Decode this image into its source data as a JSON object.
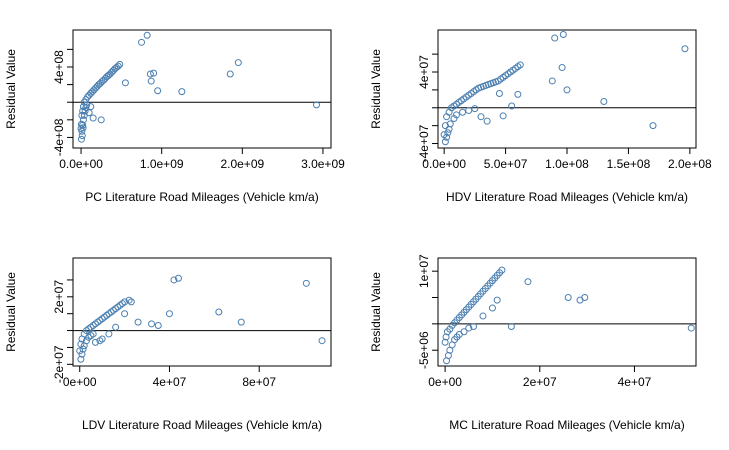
{
  "figure": {
    "accent_color": "#4A7FB0"
  },
  "chart_data": [
    {
      "type": "scatter",
      "title": "",
      "xlabel": "PC Literature Road Mileages (Vehicle km/a)",
      "ylabel": "Residual Value",
      "xlim": [
        -100000000,
        3100000000
      ],
      "ylim": [
        -520000000,
        820000000
      ],
      "xticks": [
        {
          "value": 0,
          "label": "0.0e+00"
        },
        {
          "value": 1000000000,
          "label": "1.0e+09"
        },
        {
          "value": 2000000000,
          "label": "2.0e+09"
        },
        {
          "value": 3000000000,
          "label": "3.0e+09"
        }
      ],
      "yticks": [
        {
          "value": 400000000,
          "label": "4e+08"
        },
        {
          "value": -400000000,
          "label": "-4e+08"
        }
      ],
      "yminor": [
        -200000000,
        0,
        200000000,
        600000000
      ],
      "hline": 0,
      "series": [
        {
          "color": "#4A7FB0",
          "x": [
            0,
            5000000,
            10000000,
            20000000,
            30000000,
            40000000,
            60000000,
            80000000,
            100000000,
            120000000,
            140000000,
            160000000,
            180000000,
            200000000,
            220000000,
            240000000,
            260000000,
            280000000,
            300000000,
            320000000,
            340000000,
            360000000,
            380000000,
            400000000,
            420000000,
            440000000,
            460000000,
            480000000,
            10000000,
            20000000,
            30000000,
            40000000,
            5000000,
            15000000,
            25000000,
            60000000,
            50000000,
            70000000,
            120000000,
            100000000,
            150000000,
            250000000,
            550000000,
            750000000,
            820000000,
            860000000,
            900000000,
            870000000,
            950000000,
            1250000000,
            1850000000,
            1950000000,
            2920000000
          ],
          "y": [
            -300000000,
            -250000000,
            -150000000,
            -100000000,
            -50000000,
            0,
            30000000,
            60000000,
            80000000,
            100000000,
            120000000,
            140000000,
            160000000,
            180000000,
            200000000,
            215000000,
            235000000,
            250000000,
            270000000,
            290000000,
            305000000,
            320000000,
            340000000,
            360000000,
            380000000,
            395000000,
            410000000,
            430000000,
            -330000000,
            -260000000,
            -200000000,
            -150000000,
            -420000000,
            -380000000,
            -290000000,
            -60000000,
            -100000000,
            -30000000,
            -50000000,
            -120000000,
            -180000000,
            -200000000,
            220000000,
            680000000,
            760000000,
            320000000,
            330000000,
            240000000,
            130000000,
            120000000,
            320000000,
            450000000,
            -30000000
          ]
        }
      ]
    },
    {
      "type": "scatter",
      "title": "",
      "xlabel": "HDV Literature Road Mileages (Vehicle km/a)",
      "ylabel": "Residual Value",
      "xlim": [
        -5000000,
        205000000
      ],
      "ylim": [
        -45000000,
        87000000
      ],
      "xticks": [
        {
          "value": 0,
          "label": "0.0e+00"
        },
        {
          "value": 50000000,
          "label": "5.0e+07"
        },
        {
          "value": 100000000,
          "label": "1.0e+08"
        },
        {
          "value": 150000000,
          "label": "1.5e+08"
        },
        {
          "value": 200000000,
          "label": "2.0e+08"
        }
      ],
      "yticks": [
        {
          "value": 40000000,
          "label": "4e+07"
        },
        {
          "value": -40000000,
          "label": "-4e+07"
        }
      ],
      "yminor": [
        -20000000,
        0,
        20000000,
        60000000
      ],
      "hline": 0,
      "series": [
        {
          "color": "#4A7FB0",
          "x": [
            0,
            1000000,
            2000000,
            4000000,
            6000000,
            8000000,
            10000000,
            12000000,
            14000000,
            16000000,
            18000000,
            20000000,
            22000000,
            24000000,
            26000000,
            28000000,
            30000000,
            32000000,
            34000000,
            36000000,
            38000000,
            40000000,
            42000000,
            44000000,
            46000000,
            48000000,
            50000000,
            52000000,
            54000000,
            56000000,
            58000000,
            60000000,
            62000000,
            1000000,
            2000000,
            3000000,
            4000000,
            5000000,
            8000000,
            10000000,
            15000000,
            20000000,
            25000000,
            30000000,
            35000000,
            45000000,
            48000000,
            55000000,
            60000000,
            88000000,
            90000000,
            96000000,
            97000000,
            100000000,
            130000000,
            170000000,
            196000000
          ],
          "y": [
            -30000000,
            -20000000,
            -10000000,
            -5000000,
            0,
            2000000,
            4000000,
            6000000,
            8000000,
            10000000,
            12000000,
            14000000,
            16000000,
            18000000,
            20000000,
            22000000,
            23000000,
            24000000,
            25000000,
            26000000,
            27000000,
            28000000,
            29000000,
            30000000,
            32000000,
            34000000,
            36000000,
            38000000,
            40000000,
            42000000,
            44000000,
            46000000,
            48000000,
            -38000000,
            -33000000,
            -28000000,
            -24000000,
            -18000000,
            -12000000,
            -8000000,
            -5000000,
            -3000000,
            -1000000,
            -10000000,
            -15000000,
            16000000,
            -9000000,
            2000000,
            15000000,
            30000000,
            78000000,
            45000000,
            82000000,
            20000000,
            7000000,
            -20000000,
            66000000
          ]
        }
      ]
    },
    {
      "type": "scatter",
      "title": "",
      "xlabel": "LDV Literature Road Mileages (Vehicle km/a)",
      "ylabel": "Residual Value",
      "xlim": [
        -3000000,
        112000000
      ],
      "ylim": [
        -21000000,
        43000000
      ],
      "xticks": [
        {
          "value": 0,
          "label": "0e+00"
        },
        {
          "value": 40000000,
          "label": "4e+07"
        },
        {
          "value": 80000000,
          "label": "8e+07"
        }
      ],
      "yticks": [
        {
          "value": 20000000,
          "label": "2e+07"
        },
        {
          "value": -20000000,
          "label": "-2e+07"
        }
      ],
      "yminor": [
        -10000000,
        0,
        10000000,
        30000000
      ],
      "hline": 0,
      "series": [
        {
          "color": "#4A7FB0",
          "x": [
            0,
            500000,
            1000000,
            2000000,
            3000000,
            4000000,
            5000000,
            6000000,
            7000000,
            8000000,
            9000000,
            10000000,
            11000000,
            12000000,
            13000000,
            14000000,
            15000000,
            16000000,
            17000000,
            18000000,
            19000000,
            20000000,
            22000000,
            500000,
            1000000,
            1500000,
            2000000,
            3000000,
            4000000,
            5000000,
            6000000,
            7000000,
            9000000,
            10000000,
            13000000,
            16000000,
            20000000,
            23000000,
            26000000,
            32000000,
            35000000,
            40000000,
            42000000,
            44000000,
            62000000,
            72000000,
            101000000,
            108000000
          ],
          "y": [
            -12000000,
            -8000000,
            -5000000,
            -2000000,
            0,
            1000000,
            2000000,
            3000000,
            4000000,
            5000000,
            6000000,
            7000000,
            8000000,
            9000000,
            10000000,
            11000000,
            12000000,
            13000000,
            14000000,
            15000000,
            16000000,
            17000000,
            18000000,
            -17000000,
            -14000000,
            -11000000,
            -9000000,
            -6000000,
            -4000000,
            -3000000,
            -2000000,
            -7000000,
            -6000000,
            -5000000,
            -2000000,
            2000000,
            10000000,
            17000000,
            5000000,
            4000000,
            3000000,
            10000000,
            30000000,
            31000000,
            11000000,
            5000000,
            28000000,
            -6000000
          ]
        }
      ]
    },
    {
      "type": "scatter",
      "title": "",
      "xlabel": "MC Literature Road Mileages (Vehicle km/a)",
      "ylabel": "Residual Value",
      "xlim": [
        -1500000,
        53000000
      ],
      "ylim": [
        -8000000,
        12500000
      ],
      "xticks": [
        {
          "value": 0,
          "label": "0e+00"
        },
        {
          "value": 20000000,
          "label": "2e+07"
        },
        {
          "value": 40000000,
          "label": "4e+07"
        }
      ],
      "yticks": [
        {
          "value": 10000000,
          "label": "1e+07"
        },
        {
          "value": -5000000,
          "label": "-5e+06"
        }
      ],
      "yminor": [
        0,
        5000000
      ],
      "hline": 0,
      "series": [
        {
          "color": "#4A7FB0",
          "x": [
            0,
            200000,
            500000,
            1000000,
            1500000,
            2000000,
            2500000,
            3000000,
            3500000,
            4000000,
            4500000,
            5000000,
            5500000,
            6000000,
            6500000,
            7000000,
            7500000,
            8000000,
            8500000,
            9000000,
            9500000,
            10000000,
            10500000,
            11000000,
            11500000,
            12000000,
            300000,
            700000,
            1000000,
            1500000,
            2000000,
            2500000,
            3000000,
            4000000,
            5000000,
            6000000,
            8000000,
            10000000,
            11000000,
            14000000,
            17500000,
            26000000,
            28500000,
            29500000,
            52000000
          ],
          "y": [
            -3500000,
            -2500000,
            -1500000,
            -1000000,
            -300000,
            200000,
            700000,
            1200000,
            1700000,
            2200000,
            2700000,
            3200000,
            3700000,
            4200000,
            4700000,
            5200000,
            5700000,
            6200000,
            6700000,
            7200000,
            7700000,
            8200000,
            8700000,
            9200000,
            9700000,
            10200000,
            -7000000,
            -6000000,
            -5000000,
            -4000000,
            -3000000,
            -2500000,
            -2000000,
            -1500000,
            -800000,
            -500000,
            1500000,
            3000000,
            4500000,
            -500000,
            8000000,
            5000000,
            4500000,
            5000000,
            -800000
          ]
        }
      ]
    }
  ]
}
